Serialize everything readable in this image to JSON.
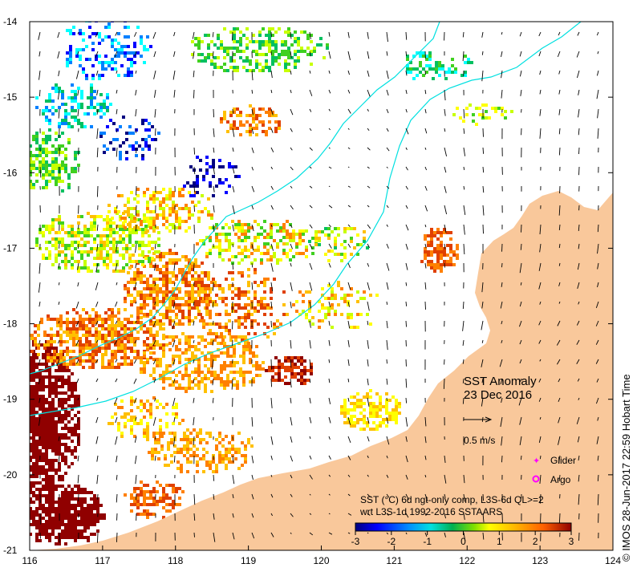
{
  "title_main": "SST Anomaly",
  "title_date": "23 Dec 2016",
  "vector_scale_label": "0.5 m/s",
  "legend": {
    "glider_label": "Glider",
    "argo_label": "Argo",
    "glider_color": "#ff00ff",
    "argo_color": "#ff00ff"
  },
  "colorbar": {
    "line1": "SST (°C) 6d ngt-only comp, L3S-6d QL>=2",
    "line2": "wrt L3S-1d 1992-2016 SSTAARS",
    "ticks": [
      "-3",
      "-2",
      "-1",
      "0",
      "1",
      "2",
      "3"
    ],
    "range": [
      -3,
      3
    ],
    "colors": [
      "#000080",
      "#0000ff",
      "#0080ff",
      "#00ffff",
      "#00c060",
      "#40d020",
      "#c8ff00",
      "#ffff00",
      "#ffc000",
      "#ff8000",
      "#e04000",
      "#900000"
    ]
  },
  "credit": "© IMOS 28-Jun-2017 22:59 Hobart Time",
  "chart_data": {
    "type": "heatmap",
    "x_ticks": [
      "116",
      "117",
      "118",
      "119",
      "120",
      "121",
      "122",
      "123",
      "124"
    ],
    "y_ticks": [
      "-14",
      "-15",
      "-16",
      "-17",
      "-18",
      "-19",
      "-20",
      "-21"
    ],
    "xlim": [
      116,
      124
    ],
    "ylim": [
      -21,
      -14
    ],
    "land_color": "#f9c89b",
    "isobath_color": "#00e0e0",
    "vector_color": "#000000"
  }
}
